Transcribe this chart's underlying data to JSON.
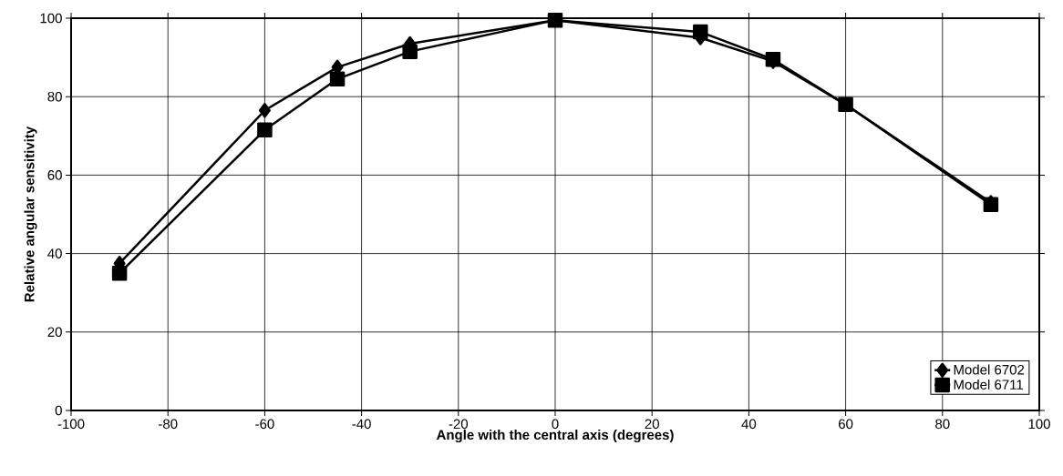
{
  "chart_data": {
    "type": "line",
    "xlabel": "Angle with the central axis (degrees)",
    "ylabel": "Relative angular sensitivity",
    "x": [
      -90,
      -60,
      -45,
      -30,
      0,
      30,
      45,
      60,
      90
    ],
    "series": [
      {
        "name": "Model 6702",
        "color": "#000000",
        "marker": "diamond",
        "values": [
          37.5,
          76.5,
          87.5,
          93.5,
          99.5,
          95,
          89,
          78,
          53
        ]
      },
      {
        "name": "Model 6711",
        "color": "#000000",
        "marker": "square",
        "values": [
          35,
          71.5,
          84.5,
          91.5,
          99.5,
          96.5,
          89.5,
          78,
          52.5
        ]
      }
    ],
    "xlim": [
      -100,
      100
    ],
    "ylim": [
      0,
      100
    ],
    "xticks": [
      -100,
      -80,
      -60,
      -40,
      -20,
      0,
      20,
      40,
      60,
      80,
      100
    ],
    "yticks": [
      0,
      20,
      40,
      60,
      80,
      100
    ],
    "grid": true,
    "legend": "bottom right",
    "line_style": "solid"
  }
}
